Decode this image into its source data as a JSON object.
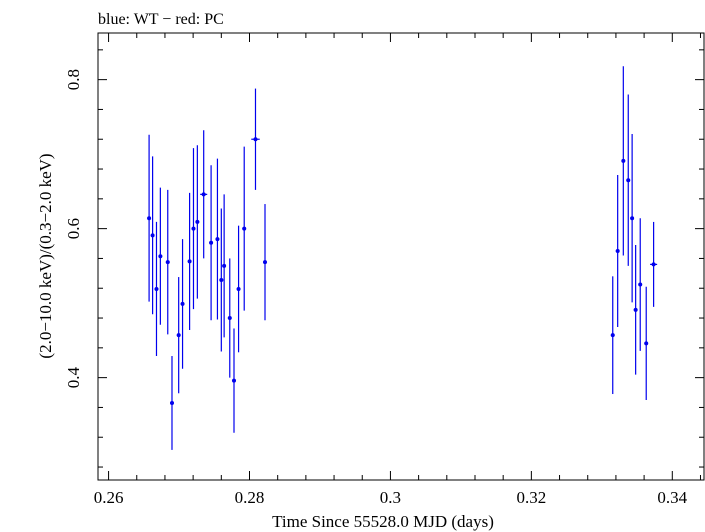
{
  "chart_data": {
    "type": "scatter",
    "title": "blue: WT − red: PC",
    "xlabel": "Time Since 55528.0 MJD (days)",
    "ylabel": "(2.0−10.0 keV)/(0.3−2.0 keV)",
    "xlim": [
      0.2585,
      0.3445
    ],
    "ylim": [
      0.2626,
      0.8626
    ],
    "x_ticks": [
      0.26,
      0.28,
      0.3,
      0.32,
      0.34
    ],
    "x_tick_labels": [
      "0.26",
      "0.28",
      "0.3",
      "0.32",
      "0.34"
    ],
    "y_ticks": [
      0.4,
      0.6,
      0.8
    ],
    "y_tick_labels": [
      "0.4",
      "0.6",
      "0.8"
    ],
    "grid": false,
    "series": [
      {
        "color": "#0000ee",
        "points": [
          {
            "x": 0.26575,
            "y": 0.614,
            "xerr": 0.00026,
            "yerr": 0.112
          },
          {
            "x": 0.26625,
            "y": 0.591,
            "xerr": 0.00026,
            "yerr": 0.106
          },
          {
            "x": 0.2668,
            "y": 0.519,
            "xerr": 0.00026,
            "yerr": 0.09
          },
          {
            "x": 0.26735,
            "y": 0.563,
            "xerr": 0.00026,
            "yerr": 0.092
          },
          {
            "x": 0.2684,
            "y": 0.555,
            "xerr": 0.00026,
            "yerr": 0.097
          },
          {
            "x": 0.269,
            "y": 0.366,
            "xerr": 0.00026,
            "yerr": 0.063
          },
          {
            "x": 0.26995,
            "y": 0.457,
            "xerr": 0.00026,
            "yerr": 0.078
          },
          {
            "x": 0.2705,
            "y": 0.499,
            "xerr": 0.00026,
            "yerr": 0.087
          },
          {
            "x": 0.2715,
            "y": 0.556,
            "xerr": 0.00026,
            "yerr": 0.092
          },
          {
            "x": 0.27205,
            "y": 0.6,
            "xerr": 0.00026,
            "yerr": 0.108
          },
          {
            "x": 0.2726,
            "y": 0.609,
            "xerr": 0.00026,
            "yerr": 0.103
          },
          {
            "x": 0.2735,
            "y": 0.646,
            "xerr": 0.0005,
            "yerr": 0.086
          },
          {
            "x": 0.27455,
            "y": 0.581,
            "xerr": 0.00026,
            "yerr": 0.104
          },
          {
            "x": 0.27545,
            "y": 0.586,
            "xerr": 0.00026,
            "yerr": 0.108
          },
          {
            "x": 0.276,
            "y": 0.531,
            "xerr": 0.00026,
            "yerr": 0.096
          },
          {
            "x": 0.2764,
            "y": 0.55,
            "xerr": 0.00026,
            "yerr": 0.096
          },
          {
            "x": 0.2772,
            "y": 0.48,
            "xerr": 0.00026,
            "yerr": 0.08
          },
          {
            "x": 0.2778,
            "y": 0.396,
            "xerr": 0.00026,
            "yerr": 0.07
          },
          {
            "x": 0.27845,
            "y": 0.519,
            "xerr": 0.00026,
            "yerr": 0.085
          },
          {
            "x": 0.27925,
            "y": 0.6,
            "xerr": 0.00026,
            "yerr": 0.11
          },
          {
            "x": 0.28085,
            "y": 0.72,
            "xerr": 0.0006,
            "yerr": 0.068
          },
          {
            "x": 0.2822,
            "y": 0.555,
            "xerr": 0.00026,
            "yerr": 0.078
          },
          {
            "x": 0.33155,
            "y": 0.457,
            "xerr": 0.00026,
            "yerr": 0.079
          },
          {
            "x": 0.33225,
            "y": 0.57,
            "xerr": 0.00026,
            "yerr": 0.102
          },
          {
            "x": 0.33305,
            "y": 0.691,
            "xerr": 0.00026,
            "yerr": 0.127
          },
          {
            "x": 0.33375,
            "y": 0.665,
            "xerr": 0.00026,
            "yerr": 0.115
          },
          {
            "x": 0.3343,
            "y": 0.614,
            "xerr": 0.00026,
            "yerr": 0.113
          },
          {
            "x": 0.3348,
            "y": 0.491,
            "xerr": 0.00026,
            "yerr": 0.087
          },
          {
            "x": 0.33545,
            "y": 0.525,
            "xerr": 0.00026,
            "yerr": 0.089
          },
          {
            "x": 0.3363,
            "y": 0.446,
            "xerr": 0.00026,
            "yerr": 0.076
          },
          {
            "x": 0.33735,
            "y": 0.552,
            "xerr": 0.0005,
            "yerr": 0.057
          }
        ]
      }
    ]
  }
}
